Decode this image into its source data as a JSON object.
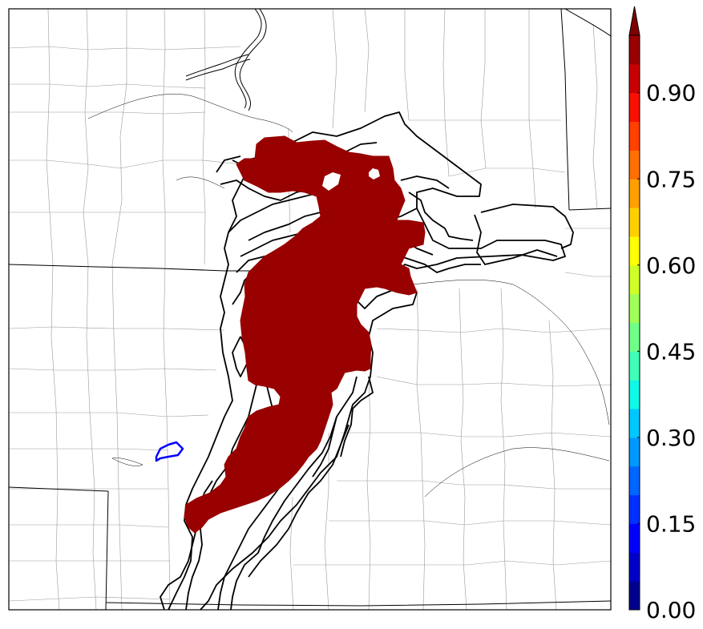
{
  "map": {
    "colors": {
      "probability_fill": "#990000",
      "member_outline": "#000000",
      "low_contour": "#0000ff",
      "state_border": "#000000",
      "county_border": "#999999",
      "river": "#000000",
      "background": "#ffffff"
    }
  },
  "colorbar": {
    "extend": "max",
    "range": [
      0.0,
      1.0
    ],
    "tick_labels": [
      {
        "value": 0.0,
        "label": "0.00"
      },
      {
        "value": 0.15,
        "label": "0.15"
      },
      {
        "value": 0.3,
        "label": "0.30"
      },
      {
        "value": 0.45,
        "label": "0.45"
      },
      {
        "value": 0.6,
        "label": "0.60"
      },
      {
        "value": 0.75,
        "label": "0.75"
      },
      {
        "value": 0.9,
        "label": "0.90"
      }
    ],
    "levels": [
      {
        "lo": 0.0,
        "hi": 0.05,
        "color": "#00008f"
      },
      {
        "lo": 0.05,
        "hi": 0.1,
        "color": "#0000c8"
      },
      {
        "lo": 0.1,
        "hi": 0.15,
        "color": "#0000ff"
      },
      {
        "lo": 0.15,
        "hi": 0.2,
        "color": "#0030ff"
      },
      {
        "lo": 0.2,
        "hi": 0.25,
        "color": "#0066ff"
      },
      {
        "lo": 0.25,
        "hi": 0.3,
        "color": "#0098ff"
      },
      {
        "lo": 0.3,
        "hi": 0.35,
        "color": "#00c8ff"
      },
      {
        "lo": 0.35,
        "hi": 0.4,
        "color": "#10f8e8"
      },
      {
        "lo": 0.4,
        "hi": 0.45,
        "color": "#40ffb8"
      },
      {
        "lo": 0.45,
        "hi": 0.5,
        "color": "#70ff88"
      },
      {
        "lo": 0.5,
        "hi": 0.55,
        "color": "#a0ff58"
      },
      {
        "lo": 0.55,
        "hi": 0.6,
        "color": "#d0ff28"
      },
      {
        "lo": 0.6,
        "hi": 0.65,
        "color": "#ffff00"
      },
      {
        "lo": 0.65,
        "hi": 0.7,
        "color": "#ffd000"
      },
      {
        "lo": 0.7,
        "hi": 0.75,
        "color": "#ffa000"
      },
      {
        "lo": 0.75,
        "hi": 0.8,
        "color": "#ff7000"
      },
      {
        "lo": 0.8,
        "hi": 0.85,
        "color": "#ff4000"
      },
      {
        "lo": 0.85,
        "hi": 0.9,
        "color": "#f81000"
      },
      {
        "lo": 0.9,
        "hi": 0.95,
        "color": "#c80000"
      },
      {
        "lo": 0.95,
        "hi": 1.0,
        "color": "#990000"
      }
    ],
    "extend_color": "#800000"
  }
}
